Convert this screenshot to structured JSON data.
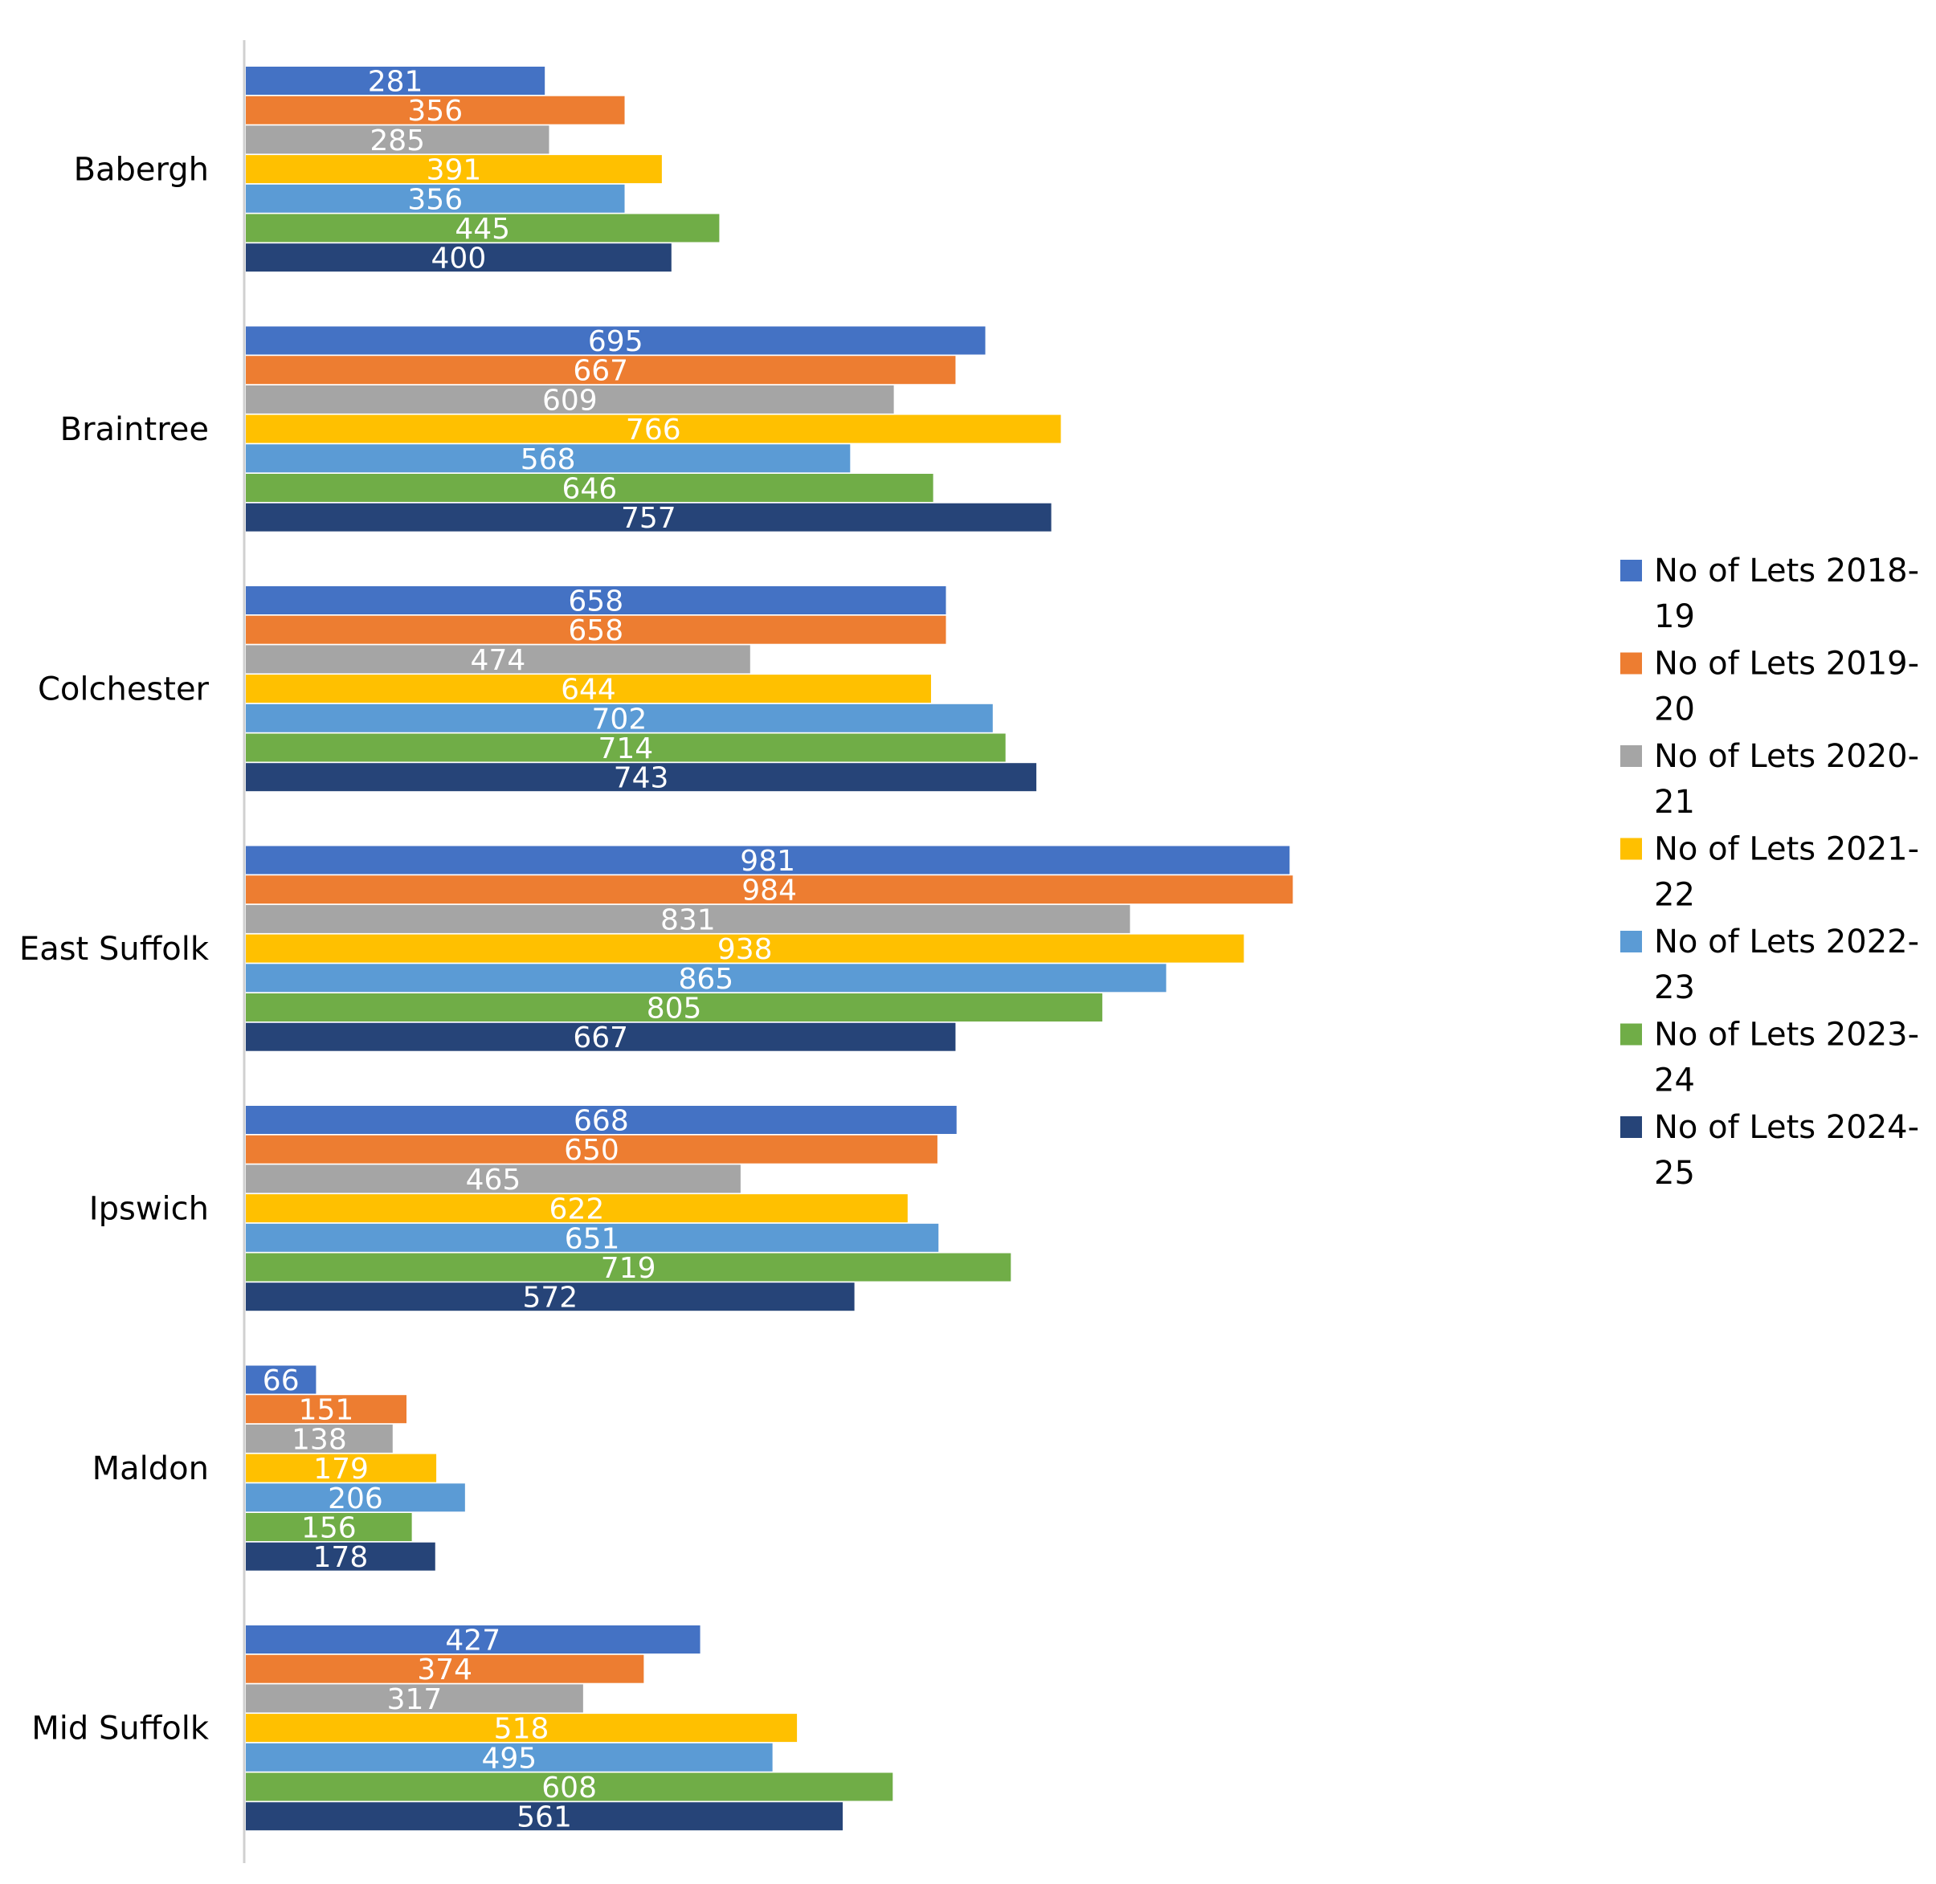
{
  "chart_data": {
    "type": "bar",
    "orientation": "horizontal",
    "title": "",
    "xlabel": "",
    "ylabel": "",
    "grid": false,
    "legend_position": "right",
    "categories": [
      "Babergh",
      "Braintree",
      "Colchester",
      "East Suffolk",
      "Ipswich",
      "Maldon",
      "Mid Suffolk"
    ],
    "series": [
      {
        "name": "No of Lets 2018-19",
        "legend_lines": [
          "No of Lets 2018-",
          "19"
        ],
        "color": "#4472C4",
        "values": [
          281,
          695,
          658,
          981,
          668,
          66,
          427
        ]
      },
      {
        "name": "No of Lets 2019-20",
        "legend_lines": [
          "No of Lets 2019-",
          "20"
        ],
        "color": "#ED7D31",
        "values": [
          356,
          667,
          658,
          984,
          650,
          151,
          374
        ]
      },
      {
        "name": "No of Lets 2020-21",
        "legend_lines": [
          "No of Lets 2020-",
          "21"
        ],
        "color": "#A5A5A5",
        "values": [
          285,
          609,
          474,
          831,
          465,
          138,
          317
        ]
      },
      {
        "name": "No of Lets 2021-22",
        "legend_lines": [
          "No of Lets 2021-",
          "22"
        ],
        "color": "#FFC000",
        "values": [
          391,
          766,
          644,
          938,
          622,
          179,
          518
        ]
      },
      {
        "name": "No of Lets 2022-23",
        "legend_lines": [
          "No of Lets 2022-",
          "23"
        ],
        "color": "#5B9BD5",
        "values": [
          356,
          568,
          702,
          865,
          651,
          206,
          495
        ]
      },
      {
        "name": "No of Lets 2023-24",
        "legend_lines": [
          "No of Lets 2023-",
          "24"
        ],
        "color": "#70AD47",
        "values": [
          445,
          646,
          714,
          805,
          719,
          156,
          608
        ]
      },
      {
        "name": "No of Lets 2024-25",
        "legend_lines": [
          "No of Lets 2024-",
          "25"
        ],
        "color": "#264478",
        "values": [
          400,
          757,
          743,
          667,
          572,
          178,
          561
        ]
      }
    ]
  }
}
